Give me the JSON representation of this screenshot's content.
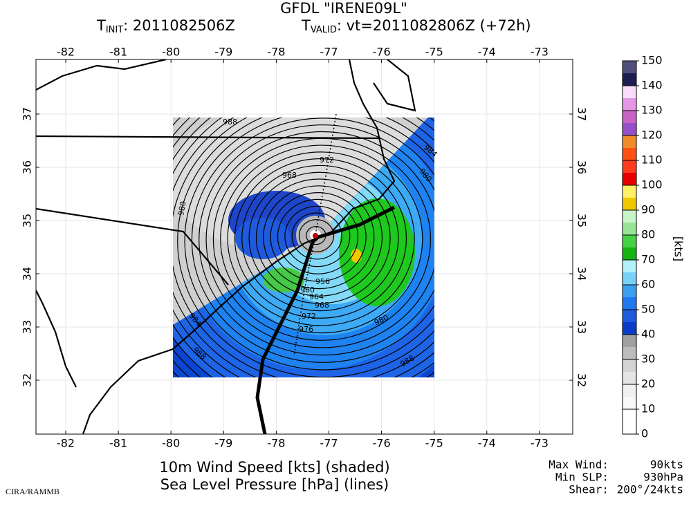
{
  "header": {
    "title": "GFDL \"IRENE09L\"",
    "t_init": {
      "symbol": "T",
      "subscript": "INIT",
      "text": ": 2011082506Z"
    },
    "t_valid": {
      "symbol": "T",
      "subscript": "VALID",
      "text": ": vt=2011082806Z (+72h)"
    }
  },
  "map": {
    "lon_labels": [
      -82,
      -81,
      -80,
      -79,
      -78,
      -77,
      -76,
      -75,
      -74,
      -73
    ],
    "lat_labels": [
      32,
      33,
      34,
      35,
      36,
      37
    ],
    "contour_labels": [
      "988",
      "972",
      "968",
      "980",
      "984",
      "980",
      "984",
      "988",
      "988",
      "976",
      "972",
      "968",
      "964",
      "960",
      "956",
      "980"
    ]
  },
  "colorbar": {
    "unit": "[kts]",
    "levels": [
      0,
      10,
      20,
      30,
      40,
      50,
      60,
      70,
      80,
      90,
      100,
      110,
      120,
      130,
      140,
      150
    ],
    "colors": [
      "#ffffff",
      "#ffffff",
      "#f8f8f8",
      "#f0f0f0",
      "#e4e4e4",
      "#d4d4d4",
      "#bcbcbc",
      "#a0a0a0",
      "#0a3cc8",
      "#1e5adc",
      "#1e78f0",
      "#3ca0f0",
      "#78d2f8",
      "#b4f0fa",
      "#14b414",
      "#46d246",
      "#96e696",
      "#c8f5c8",
      "#f0c800",
      "#fff064",
      "#e60000",
      "#ff3c1e",
      "#ff5014",
      "#f08c28",
      "#9650c8",
      "#c864c8",
      "#e696e6",
      "#fadcfa",
      "#1e1e50",
      "#50507a"
    ]
  },
  "footer": {
    "line1": "10m Wind Speed [kts] (shaded)",
    "line2": "Sea Level Pressure [hPa] (lines)",
    "credit": "CIRA/RAMMB",
    "stats": [
      {
        "label": "Max Wind:",
        "value": "90kts"
      },
      {
        "label": "Min SLP:",
        "value": "930hPa"
      },
      {
        "label": "Shear:",
        "value": "200°/24kts"
      }
    ]
  }
}
